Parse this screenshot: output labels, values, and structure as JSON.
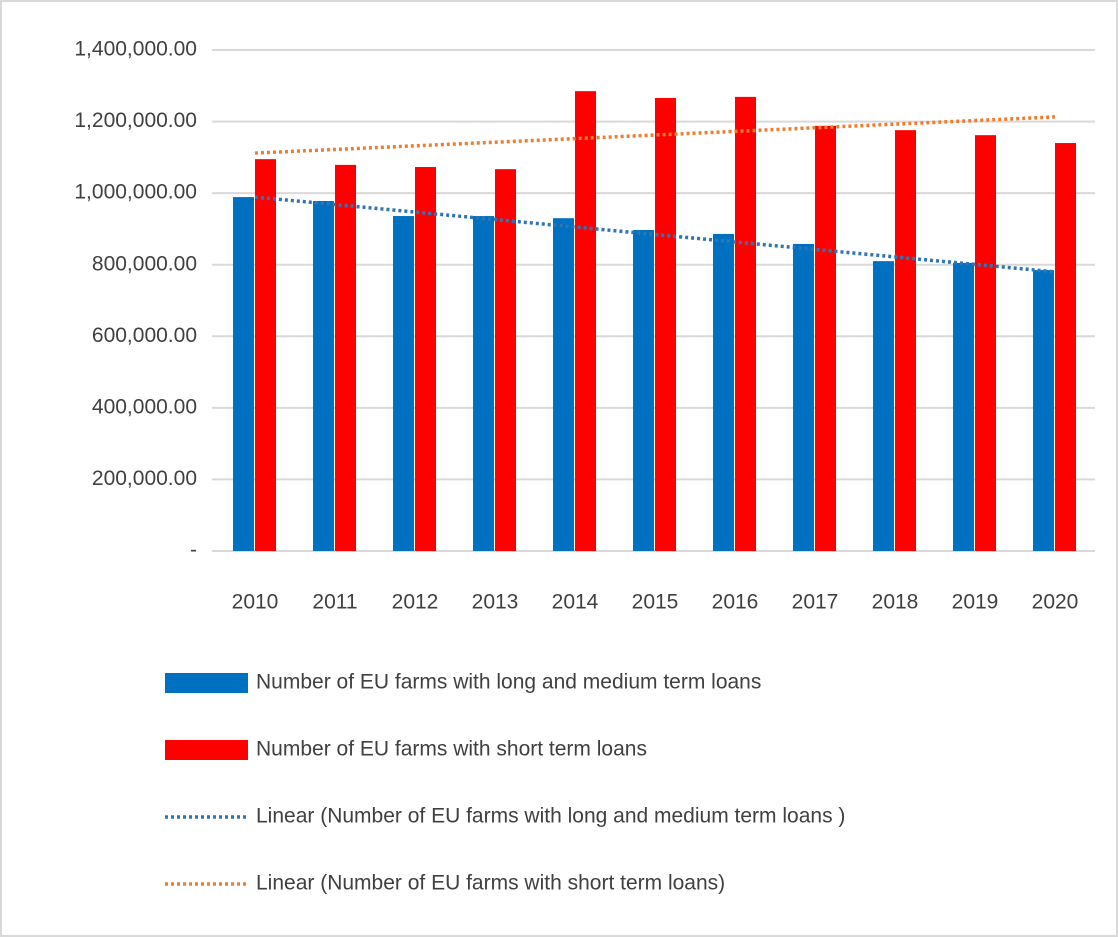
{
  "chart_data": {
    "type": "bar",
    "categories": [
      "2010",
      "2011",
      "2012",
      "2013",
      "2014",
      "2015",
      "2016",
      "2017",
      "2018",
      "2019",
      "2020"
    ],
    "series": [
      {
        "name": "Number of EU farms with long and medium term loans",
        "type": "bar",
        "color": "#0070c0",
        "values": [
          989000,
          978000,
          936000,
          936000,
          930000,
          897000,
          886000,
          858000,
          810000,
          805000,
          785000
        ]
      },
      {
        "name": "Number of EU farms with short term loans",
        "type": "bar",
        "color": "#ff0000",
        "values": [
          1095000,
          1079000,
          1073000,
          1067000,
          1285000,
          1266000,
          1269000,
          1188000,
          1176000,
          1162000,
          1140000
        ]
      },
      {
        "name": "Linear (Number of EU farms with long and medium term loans )",
        "type": "line",
        "line_style": "dotted",
        "color": "#2e75b6",
        "values": [
          989000,
          968100,
          947200,
          926300,
          905400,
          884500,
          863600,
          842700,
          821800,
          800900,
          780000
        ]
      },
      {
        "name": "Linear (Number of EU farms with short term loans)",
        "type": "line",
        "line_style": "dotted",
        "color": "#ed7d31",
        "values": [
          1112000,
          1122100,
          1132200,
          1142300,
          1152400,
          1162500,
          1172600,
          1182700,
          1192800,
          1202900,
          1213000
        ]
      }
    ],
    "ylim": [
      0,
      1400000
    ],
    "yticks": [
      {
        "value": 0,
        "label": "-"
      },
      {
        "value": 200000,
        "label": "200,000.00"
      },
      {
        "value": 400000,
        "label": "400,000.00"
      },
      {
        "value": 600000,
        "label": "600,000.00"
      },
      {
        "value": 800000,
        "label": "800,000.00"
      },
      {
        "value": 1000000,
        "label": "1,000,000.00"
      },
      {
        "value": 1200000,
        "label": "1,200,000.00"
      },
      {
        "value": 1400000,
        "label": "1,400,000.00"
      }
    ],
    "grid": true,
    "legend": "bottom"
  }
}
